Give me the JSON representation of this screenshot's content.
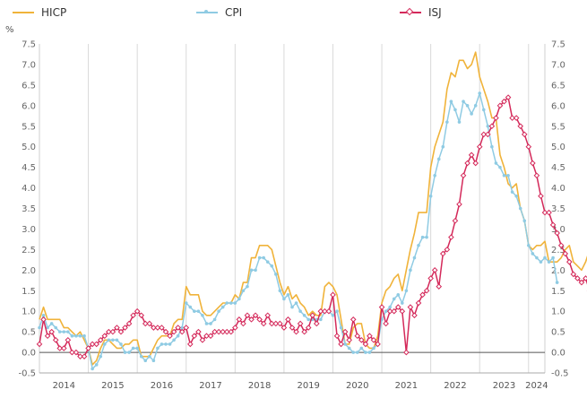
{
  "chart_data": {
    "type": "line",
    "unit_label": "%",
    "ylim": [
      -0.5,
      7.5
    ],
    "y_ticks": [
      "-0.5",
      "0.0",
      "0.5",
      "1.0",
      "1.5",
      "2.0",
      "2.5",
      "3.0",
      "3.5",
      "4.0",
      "4.5",
      "5.0",
      "5.5",
      "6.0",
      "6.5",
      "7.0",
      "7.5"
    ],
    "x_tick_labels": [
      "2014",
      "2015",
      "2016",
      "2017",
      "2018",
      "2019",
      "2020",
      "2021",
      "2022",
      "2023",
      "2024"
    ],
    "grid": "vertical lines at year boundaries",
    "legend_position": "top",
    "x_start": "2014-01",
    "x_end": "2024-05",
    "series": [
      {
        "name": "HICP",
        "color": "#f0b33a",
        "marker": "none",
        "values": [
          0.8,
          1.1,
          0.8,
          0.8,
          0.8,
          0.8,
          0.6,
          0.6,
          0.5,
          0.4,
          0.5,
          0.3,
          0.1,
          -0.3,
          -0.2,
          0.1,
          0.3,
          0.3,
          0.2,
          0.1,
          0.1,
          0.2,
          0.2,
          0.3,
          0.3,
          -0.1,
          -0.1,
          -0.1,
          0.1,
          0.3,
          0.4,
          0.4,
          0.4,
          0.7,
          0.8,
          0.8,
          1.6,
          1.4,
          1.4,
          1.4,
          1.0,
          0.9,
          0.9,
          1.0,
          1.1,
          1.2,
          1.2,
          1.2,
          1.4,
          1.3,
          1.7,
          1.7,
          2.3,
          2.3,
          2.6,
          2.6,
          2.6,
          2.5,
          2.1,
          1.7,
          1.4,
          1.6,
          1.3,
          1.4,
          1.2,
          1.1,
          0.9,
          1.0,
          0.9,
          0.9,
          1.6,
          1.7,
          1.6,
          1.4,
          0.8,
          0.2,
          0.2,
          0.6,
          0.7,
          0.7,
          0.2,
          0.1,
          0.1,
          0.4,
          1.2,
          1.5,
          1.6,
          1.8,
          1.9,
          1.5,
          2.0,
          2.5,
          2.9,
          3.4,
          3.4,
          3.4,
          4.5,
          5.0,
          5.3,
          5.6,
          6.4,
          6.8,
          6.7,
          7.1,
          7.1,
          6.9,
          7.0,
          7.3,
          6.7,
          6.4,
          6.1,
          5.7,
          5.7,
          4.8,
          4.5,
          4.1,
          4.0,
          4.1,
          3.5,
          3.2,
          2.6,
          2.5,
          2.6,
          2.6,
          2.7,
          2.2,
          2.2,
          2.2,
          2.3,
          2.5,
          2.6,
          2.2,
          2.1,
          2.0,
          2.2,
          2.5,
          2.5,
          2.6
        ]
      },
      {
        "name": "CPI",
        "color": "#8fcbe3",
        "marker": "circle",
        "values": [
          0.6,
          0.9,
          0.6,
          0.7,
          0.6,
          0.5,
          0.5,
          0.5,
          0.4,
          0.4,
          0.4,
          0.4,
          0.1,
          -0.4,
          -0.3,
          -0.1,
          0.2,
          0.3,
          0.3,
          0.3,
          0.2,
          0.0,
          0.0,
          0.1,
          0.1,
          -0.1,
          -0.2,
          -0.1,
          -0.2,
          0.1,
          0.2,
          0.2,
          0.2,
          0.3,
          0.4,
          0.6,
          1.2,
          1.1,
          1.0,
          1.0,
          0.9,
          0.7,
          0.7,
          0.8,
          1.0,
          1.1,
          1.2,
          1.2,
          1.2,
          1.3,
          1.5,
          1.6,
          2.0,
          2.0,
          2.3,
          2.3,
          2.2,
          2.1,
          1.9,
          1.5,
          1.3,
          1.4,
          1.1,
          1.2,
          1.0,
          0.9,
          0.8,
          0.8,
          0.8,
          0.8,
          1.0,
          1.0,
          0.9,
          1.0,
          0.6,
          0.2,
          0.1,
          0.0,
          0.0,
          0.1,
          0.0,
          0.0,
          0.1,
          0.2,
          0.8,
          1.0,
          1.1,
          1.3,
          1.4,
          1.2,
          1.5,
          2.0,
          2.3,
          2.6,
          2.8,
          2.8,
          3.8,
          4.3,
          4.7,
          5.0,
          5.6,
          6.1,
          5.9,
          5.6,
          6.1,
          6.0,
          5.8,
          6.0,
          6.3,
          5.9,
          5.5,
          5.0,
          4.6,
          4.5,
          4.3,
          4.3,
          3.9,
          3.8,
          3.5,
          3.2,
          2.6,
          2.4,
          2.3,
          2.2,
          2.3,
          2.2,
          2.3,
          1.7
        ]
      },
      {
        "name": "ISJ",
        "color": "#d4295a",
        "marker": "diamond",
        "values": [
          0.2,
          0.8,
          0.4,
          0.5,
          0.3,
          0.1,
          0.1,
          0.3,
          0.0,
          0.0,
          -0.1,
          -0.1,
          0.1,
          0.2,
          0.2,
          0.3,
          0.4,
          0.5,
          0.5,
          0.6,
          0.5,
          0.6,
          0.7,
          0.9,
          1.0,
          0.9,
          0.7,
          0.7,
          0.6,
          0.6,
          0.6,
          0.5,
          0.4,
          0.5,
          0.6,
          0.5,
          0.6,
          0.2,
          0.4,
          0.5,
          0.3,
          0.4,
          0.4,
          0.5,
          0.5,
          0.5,
          0.5,
          0.5,
          0.6,
          0.8,
          0.7,
          0.9,
          0.8,
          0.9,
          0.8,
          0.7,
          0.9,
          0.7,
          0.7,
          0.7,
          0.6,
          0.8,
          0.6,
          0.5,
          0.7,
          0.5,
          0.6,
          0.9,
          0.7,
          1.0,
          1.0,
          1.0,
          1.4,
          0.4,
          0.2,
          0.5,
          0.3,
          0.8,
          0.4,
          0.3,
          0.2,
          0.4,
          0.3,
          0.2,
          1.1,
          0.7,
          1.0,
          1.0,
          1.1,
          1.0,
          0.0,
          1.1,
          0.9,
          1.2,
          1.4,
          1.5,
          1.8,
          2.0,
          1.6,
          2.4,
          2.5,
          2.8,
          3.2,
          3.6,
          4.3,
          4.6,
          4.8,
          4.6,
          5.0,
          5.3,
          5.3,
          5.5,
          5.7,
          6.0,
          6.1,
          6.2,
          5.7,
          5.7,
          5.5,
          5.3,
          5.0,
          4.6,
          4.3,
          3.8,
          3.4,
          3.4,
          3.1,
          2.9,
          2.6,
          2.4,
          2.2,
          1.9,
          1.8,
          1.7,
          1.8,
          1.5,
          1.7
        ]
      }
    ]
  }
}
